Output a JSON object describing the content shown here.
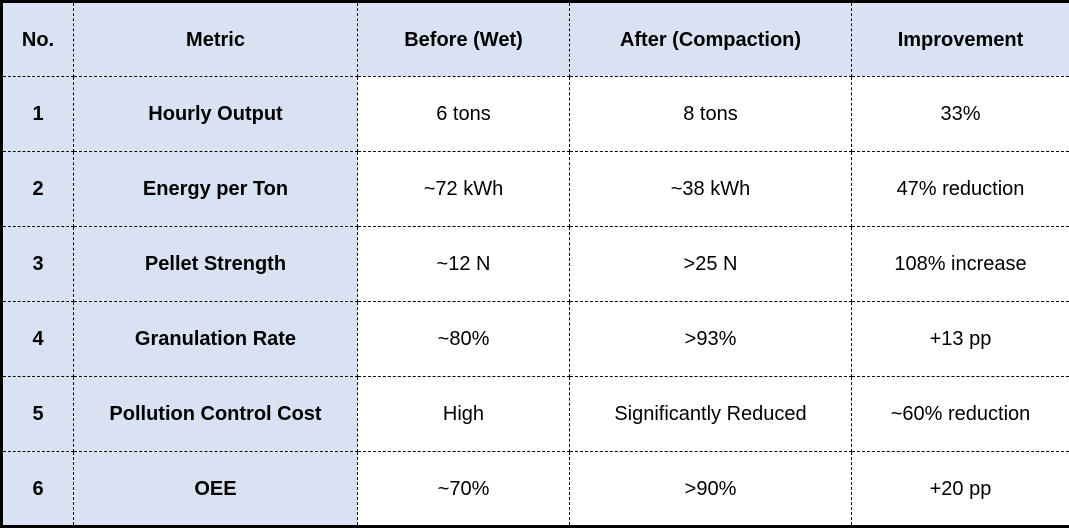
{
  "table": {
    "columns": [
      {
        "key": "no",
        "label": "No."
      },
      {
        "key": "metric",
        "label": "Metric"
      },
      {
        "key": "before",
        "label": "Before (Wet)"
      },
      {
        "key": "after",
        "label": "After (Compaction)"
      },
      {
        "key": "improvement",
        "label": "Improvement"
      }
    ],
    "rows": [
      {
        "no": "1",
        "metric": "Hourly Output",
        "before": "6 tons",
        "after": "8 tons",
        "improvement": "33%"
      },
      {
        "no": "2",
        "metric": "Energy per Ton",
        "before": "~72 kWh",
        "after": "~38 kWh",
        "improvement": "47% reduction"
      },
      {
        "no": "3",
        "metric": "Pellet Strength",
        "before": "~12 N",
        "after": ">25 N",
        "improvement": "108% increase"
      },
      {
        "no": "4",
        "metric": "Granulation Rate",
        "before": "~80%",
        "after": ">93%",
        "improvement": "+13 pp"
      },
      {
        "no": "5",
        "metric": "Pollution Control Cost",
        "before": "High",
        "after": "Significantly Reduced",
        "improvement": "~60% reduction"
      },
      {
        "no": "6",
        "metric": "OEE",
        "before": "~70%",
        "after": ">90%",
        "improvement": "+20 pp"
      }
    ],
    "colors": {
      "header_bg": "#d9e2f3",
      "label_bg": "#d9e2f3",
      "data_bg": "#ffffff",
      "border": "#000000",
      "text": "#000000"
    }
  }
}
